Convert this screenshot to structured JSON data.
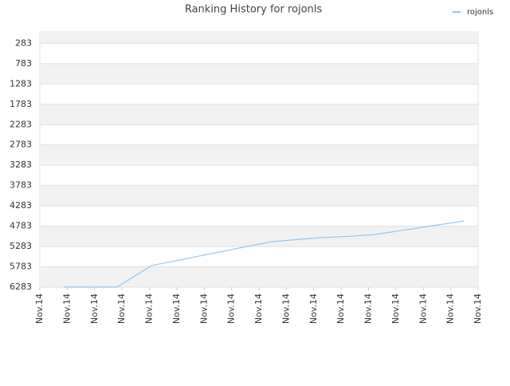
{
  "chart_data": {
    "type": "line",
    "title": "Ranking History for rojonls",
    "x": [
      0.87,
      2.82,
      4.07,
      8.44,
      10.2,
      11.4,
      12.22,
      15.48
    ],
    "xlim": [
      0,
      16
    ],
    "xticks": [
      {
        "value": 0,
        "label": "Nov.14"
      },
      {
        "value": 1,
        "label": "Nov.14"
      },
      {
        "value": 2,
        "label": "Nov.14"
      },
      {
        "value": 3,
        "label": "Nov.14"
      },
      {
        "value": 4,
        "label": "Nov.14"
      },
      {
        "value": 5,
        "label": "Nov.14"
      },
      {
        "value": 6,
        "label": "Nov.14"
      },
      {
        "value": 7,
        "label": "Nov.14"
      },
      {
        "value": 8,
        "label": "Nov.14"
      },
      {
        "value": 9,
        "label": "Nov.14"
      },
      {
        "value": 10,
        "label": "Nov.14"
      },
      {
        "value": 11,
        "label": "Nov.14"
      },
      {
        "value": 12,
        "label": "Nov.14"
      },
      {
        "value": 13,
        "label": "Nov.14"
      },
      {
        "value": 14,
        "label": "Nov.14"
      },
      {
        "value": 15,
        "label": "Nov.14"
      },
      {
        "value": 16,
        "label": "Nov.14"
      }
    ],
    "series": [
      {
        "name": "rojonls",
        "color": "#90c5f0",
        "values": [
          6283,
          6283,
          5754,
          5165,
          5067,
          5028,
          4989,
          4655
        ]
      }
    ],
    "ylim": [
      6283,
      0
    ],
    "yticks": [
      283,
      783,
      1283,
      1783,
      2283,
      2783,
      3283,
      3783,
      4283,
      4783,
      5283,
      5783,
      6283
    ],
    "grid": true,
    "legend": "top-right"
  }
}
